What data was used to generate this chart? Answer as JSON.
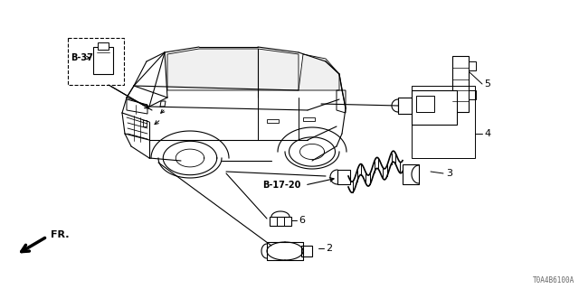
{
  "bg_color": "#ffffff",
  "diagram_code": "T0A4B6100A",
  "car": {
    "body_color": "black",
    "lw": 0.8
  },
  "labels": {
    "B37": "B-37",
    "B1720": "B-17-20",
    "n2": "2",
    "n3": "3",
    "n4": "4",
    "n5": "5",
    "n6": "6"
  }
}
